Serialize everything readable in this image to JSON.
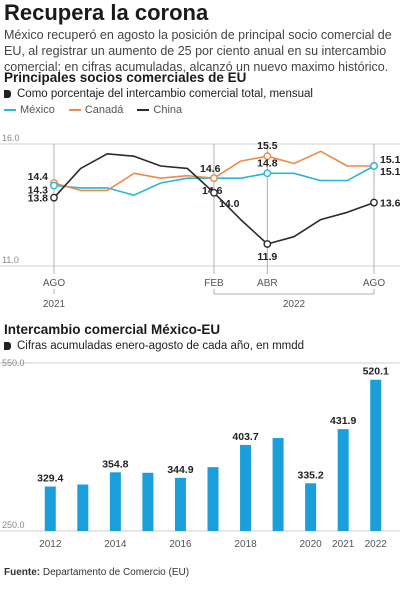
{
  "header": {
    "title": "Recupera la corona",
    "lead": "México recuperó en agosto la posición de principal socio comercial de EU, al registrar un aumento de 25 por ciento anual en su intercambio comercial; en cifras acumuladas, alcanzó un nuevo maximo histórico."
  },
  "line_section": {
    "title": "Principales socios comerciales de EU",
    "subtitle": "Como porcentaje del intercambio comercial total, mensual"
  },
  "bar_section": {
    "title": "Intercambio comercial México-EU",
    "subtitle": "Cifras acumuladas enero-agosto de cada año, en mmdd"
  },
  "source": {
    "label": "Fuente:",
    "text": "Departamento de Comercio (EU)"
  },
  "colors": {
    "mexico": "#29b6d8",
    "canada": "#ef8a4b",
    "china": "#2b2b2b",
    "bar": "#1a9fdb",
    "grid": "#cfcfcf"
  },
  "chart_data": [
    {
      "type": "line",
      "x": [
        "2021-08",
        "2021-09",
        "2021-10",
        "2021-11",
        "2021-12",
        "2022-01",
        "2022-02",
        "2022-03",
        "2022-04",
        "2022-05",
        "2022-06",
        "2022-07",
        "2022-08"
      ],
      "x_tick_labels": [
        {
          "at": "2021-08",
          "label": "AGO"
        },
        {
          "at": "2022-02",
          "label": "FEB"
        },
        {
          "at": "2022-04",
          "label": "ABR"
        },
        {
          "at": "2022-08",
          "label": "AGO"
        }
      ],
      "year_labels": [
        {
          "label": "2021",
          "from": "2021-08",
          "to": "2021-08"
        },
        {
          "label": "2022",
          "from": "2022-02",
          "to": "2022-08"
        }
      ],
      "ylim": [
        11.0,
        16.0
      ],
      "y_tick_labels": [
        "16.0",
        "11.0"
      ],
      "grid": true,
      "series": [
        {
          "name": "México",
          "color_key": "mexico",
          "values": [
            14.3,
            14.2,
            14.2,
            13.9,
            14.4,
            14.6,
            14.6,
            14.6,
            14.8,
            14.8,
            14.5,
            14.5,
            15.1
          ]
        },
        {
          "name": "Canadá",
          "color_key": "canada",
          "values": [
            14.4,
            14.1,
            14.1,
            14.8,
            14.6,
            14.7,
            14.6,
            15.3,
            15.5,
            15.2,
            15.7,
            15.1,
            15.1
          ]
        },
        {
          "name": "China",
          "color_key": "china",
          "values": [
            13.8,
            15.0,
            15.6,
            15.5,
            15.1,
            15.0,
            14.0,
            12.9,
            11.9,
            12.2,
            12.9,
            13.2,
            13.6
          ]
        }
      ],
      "annotations": [
        {
          "series": "Canadá",
          "x": "2021-08",
          "text": "14.4"
        },
        {
          "series": "México",
          "x": "2021-08",
          "text": "14.3"
        },
        {
          "series": "China",
          "x": "2021-08",
          "text": "13.8"
        },
        {
          "series": "México",
          "x": "2022-02",
          "text": "14.6"
        },
        {
          "series": "Canadá",
          "x": "2022-02",
          "text": "14.6"
        },
        {
          "series": "China",
          "x": "2022-02",
          "text": "14.0"
        },
        {
          "series": "Canadá",
          "x": "2022-04",
          "text": "15.5"
        },
        {
          "series": "México",
          "x": "2022-04",
          "text": "14.8"
        },
        {
          "series": "China",
          "x": "2022-04",
          "text": "11.9"
        },
        {
          "series": "Canadá",
          "x": "2022-08",
          "text": "15.1"
        },
        {
          "series": "México",
          "x": "2022-08",
          "text": "15.1"
        },
        {
          "series": "China",
          "x": "2022-08",
          "text": "13.6"
        }
      ]
    },
    {
      "type": "bar",
      "categories": [
        "2012",
        "2013",
        "2014",
        "2015",
        "2016",
        "2017",
        "2018",
        "2019",
        "2020",
        "2021",
        "2022"
      ],
      "x_tick_labels": [
        "2012",
        "2014",
        "2016",
        "2018",
        "2020",
        "2021",
        "2022"
      ],
      "values": [
        329.4,
        333.0,
        354.8,
        354.0,
        344.9,
        364.0,
        403.7,
        416.0,
        335.2,
        431.9,
        520.1
      ],
      "data_labels": [
        {
          "category": "2012",
          "text": "329.4"
        },
        {
          "category": "2014",
          "text": "354.8"
        },
        {
          "category": "2016",
          "text": "344.9"
        },
        {
          "category": "2018",
          "text": "403.7"
        },
        {
          "category": "2020",
          "text": "335.2"
        },
        {
          "category": "2021",
          "text": "431.9"
        },
        {
          "category": "2022",
          "text": "520.1"
        }
      ],
      "ylim": [
        250.0,
        550.0
      ],
      "y_tick_labels": [
        "550.0",
        "250.0"
      ],
      "grid": true
    }
  ]
}
